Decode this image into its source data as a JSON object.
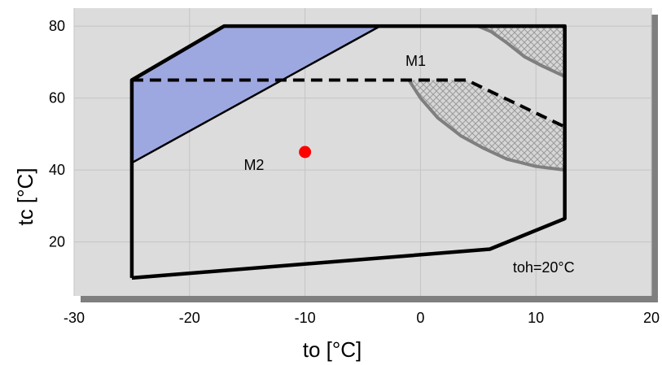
{
  "chart_data": {
    "type": "scatter",
    "title": "",
    "xlabel": "to [°C]",
    "ylabel": "tc [°C]",
    "xlim": [
      -30,
      20
    ],
    "ylim": [
      5,
      85
    ],
    "xticks": [
      -30,
      -20,
      -10,
      0,
      10,
      20
    ],
    "yticks": [
      20,
      40,
      60,
      80
    ],
    "x_tick_labels": [
      "-30",
      "-20",
      "-10",
      "0",
      "10",
      "20"
    ],
    "y_tick_labels": [
      "20",
      "40",
      "60",
      "80"
    ],
    "grid": true,
    "legend": "none",
    "regions": [
      {
        "name": "envelope",
        "style": "solid-black",
        "points": [
          [
            -25,
            10
          ],
          [
            6,
            18
          ],
          [
            12.5,
            26.5
          ],
          [
            12.5,
            80
          ],
          [
            -17,
            80
          ],
          [
            -25,
            65
          ],
          [
            -25,
            10
          ]
        ]
      },
      {
        "name": "M1-boundary",
        "style": "dashed-black",
        "points": [
          [
            -25,
            65
          ],
          [
            4,
            65
          ],
          [
            12.5,
            52
          ]
        ]
      },
      {
        "name": "blue-region",
        "style": "filled-blue",
        "points": [
          [
            -25,
            65
          ],
          [
            -17,
            80
          ],
          [
            -3.5,
            80
          ],
          [
            -25,
            42
          ]
        ]
      },
      {
        "name": "hatched-top",
        "style": "hatched-gray",
        "points": [
          [
            5,
            80
          ],
          [
            6.1,
            78.5
          ],
          [
            7.5,
            75.3
          ],
          [
            9,
            71.5
          ],
          [
            10.5,
            69.0
          ],
          [
            12.5,
            66.0
          ],
          [
            12.5,
            80
          ]
        ]
      },
      {
        "name": "hatched-middle",
        "style": "hatched-gray",
        "points": [
          [
            -1,
            65
          ],
          [
            0,
            60
          ],
          [
            1.5,
            54.5
          ],
          [
            3.5,
            49.5
          ],
          [
            5.5,
            46.0
          ],
          [
            7.5,
            43.0
          ],
          [
            10,
            41.0
          ],
          [
            12.5,
            40.0
          ],
          [
            12.5,
            52
          ],
          [
            4,
            65
          ]
        ]
      }
    ],
    "points": [
      {
        "x": -10,
        "y": 45,
        "color": "#ff0000"
      }
    ],
    "annotations": [
      {
        "text": "M1",
        "x": -1.3,
        "y": 69
      },
      {
        "text": "M2",
        "x": -15.3,
        "y": 40
      },
      {
        "text": "toh=20°C",
        "x": 8,
        "y": 11.5
      }
    ],
    "colors": {
      "plot_bg": "#dcdcdc",
      "shadow": "#7f7f7f",
      "grid": "#c4c4c4",
      "blue_fill": "#9ea8e0",
      "hatch_line": "#8a8a8a",
      "hatch_bg": "#cfcfcf",
      "point": "#ff0000"
    }
  }
}
